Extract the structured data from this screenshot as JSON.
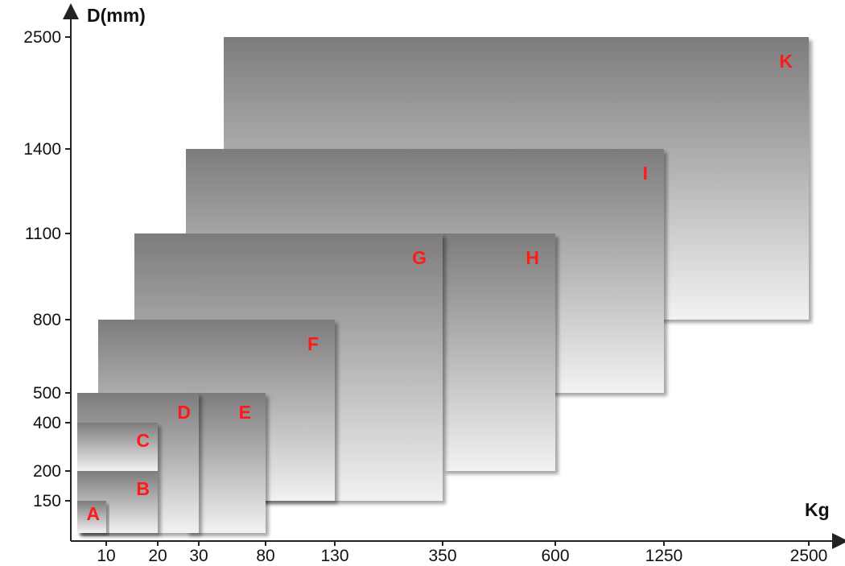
{
  "chart_data": {
    "type": "bar",
    "xlabel": "Kg",
    "ylabel": "D(mm)",
    "x_ticks": [
      "10",
      "20",
      "30",
      "80",
      "130",
      "350",
      "600",
      "1250",
      "2500"
    ],
    "y_ticks": [
      "150",
      "200",
      "400",
      "500",
      "800",
      "1100",
      "1400",
      "2500"
    ],
    "boxes": [
      {
        "label": "K",
        "x_range": [
          "80",
          "2500"
        ],
        "y_range": [
          800,
          2500
        ]
      },
      {
        "label": "I",
        "x_range": [
          "30",
          "1250"
        ],
        "y_range": [
          500,
          1400
        ]
      },
      {
        "label": "H",
        "x_range": [
          "350",
          "600"
        ],
        "y_range": [
          200,
          1100
        ]
      },
      {
        "label": "G",
        "x_range": [
          "20",
          "350"
        ],
        "y_range": [
          150,
          1100
        ]
      },
      {
        "label": "F",
        "x_range": [
          "10",
          "130"
        ],
        "y_range": [
          150,
          800
        ]
      },
      {
        "label": "E",
        "x_range": [
          "30",
          "80"
        ],
        "y_range": [
          0,
          500
        ]
      },
      {
        "label": "D",
        "x_range": [
          "0",
          "30"
        ],
        "y_range": [
          0,
          500
        ]
      },
      {
        "label": "C",
        "x_range": [
          "0",
          "20"
        ],
        "y_range": [
          200,
          400
        ]
      },
      {
        "label": "B",
        "x_range": [
          "0",
          "20"
        ],
        "y_range": [
          0,
          200
        ]
      },
      {
        "label": "A",
        "x_range": [
          "0",
          "10"
        ],
        "y_range": [
          0,
          150
        ]
      }
    ],
    "colors": {
      "box_top": "#7d7b7c",
      "box_bottom": "#f3f1f2",
      "label": "#ff1a1a",
      "axis": "#222222"
    }
  }
}
